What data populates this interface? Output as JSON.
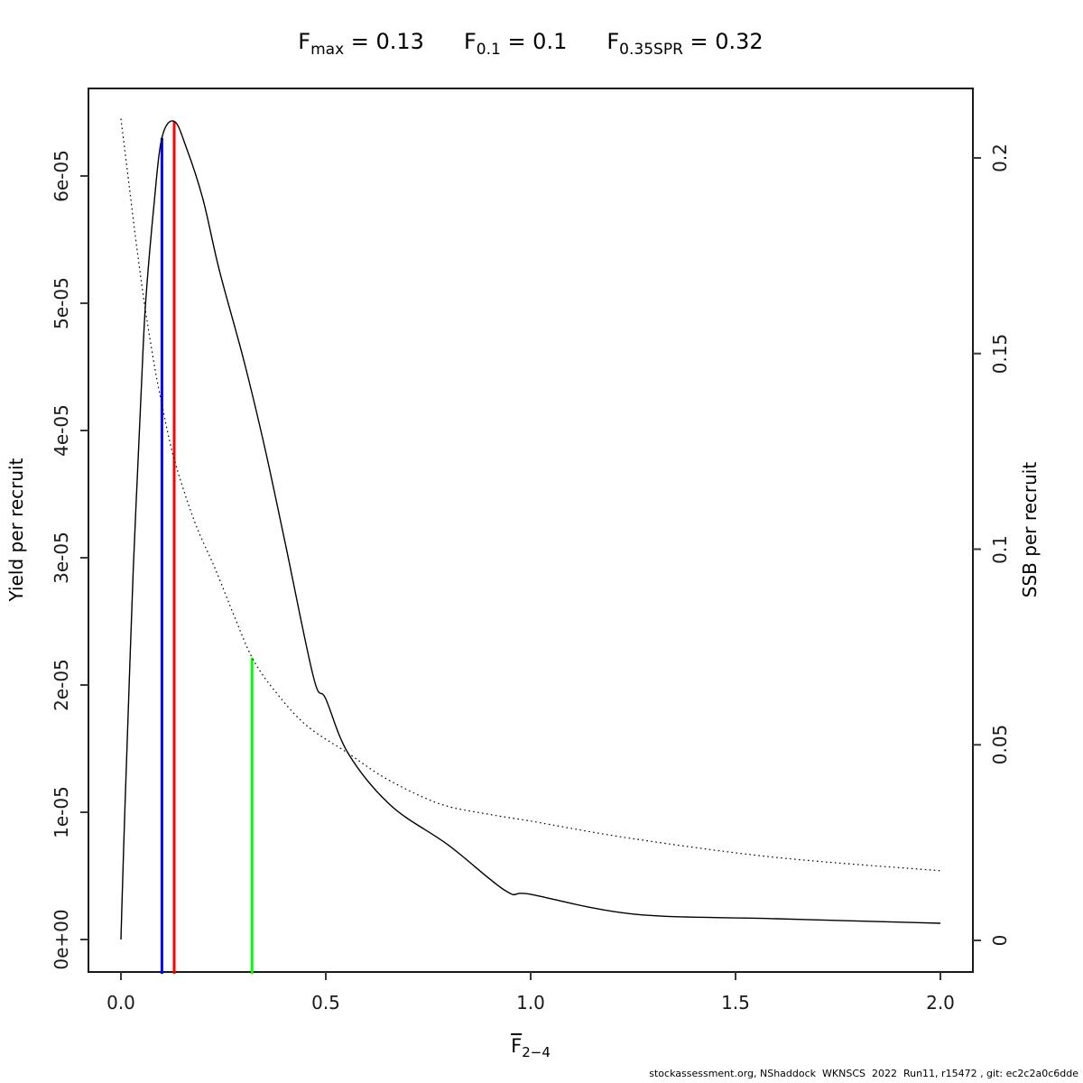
{
  "chart_data": {
    "type": "line",
    "title_parts": [
      {
        "base": "F",
        "sub": "max",
        "eq": " = 0.13"
      },
      {
        "base": "F",
        "sub": "0.1",
        "eq": " = 0.1"
      },
      {
        "base": "F",
        "sub": "0.35SPR",
        "eq": " = 0.32"
      }
    ],
    "x_axis": {
      "label_base": "F",
      "label_overbar": true,
      "label_sub": "2−4",
      "range": [
        0,
        2
      ],
      "ticks": [
        {
          "v": 0.0,
          "label": "0.0"
        },
        {
          "v": 0.5,
          "label": "0.5"
        },
        {
          "v": 1.0,
          "label": "1.0"
        },
        {
          "v": 1.5,
          "label": "1.5"
        },
        {
          "v": 2.0,
          "label": "2.0"
        }
      ]
    },
    "y_left": {
      "label": "Yield per recruit",
      "range": [
        0,
        6.6e-05
      ],
      "ticks": [
        {
          "v": 0.0,
          "label": "0e+00"
        },
        {
          "v": 1e-05,
          "label": "1e-05"
        },
        {
          "v": 2e-05,
          "label": "2e-05"
        },
        {
          "v": 3e-05,
          "label": "3e-05"
        },
        {
          "v": 4e-05,
          "label": "4e-05"
        },
        {
          "v": 5e-05,
          "label": "5e-05"
        },
        {
          "v": 6e-05,
          "label": "6e-05"
        }
      ]
    },
    "y_right": {
      "label": "SSB per recruit",
      "range": [
        0,
        0.21
      ],
      "ticks": [
        {
          "v": 0.0,
          "label": "0"
        },
        {
          "v": 0.05,
          "label": "0.05"
        },
        {
          "v": 0.1,
          "label": "0.1"
        },
        {
          "v": 0.15,
          "label": "0.15"
        },
        {
          "v": 0.2,
          "label": "0.2"
        }
      ]
    },
    "grid": false,
    "legend": "none",
    "series": [
      {
        "name": "yield_per_recruit",
        "axis": "left",
        "style": "solid",
        "color": "#000000",
        "points": [
          [
            0,
            0
          ],
          [
            0.005,
            5.5e-06
          ],
          [
            0.01,
            1.05e-05
          ],
          [
            0.02,
            2e-05
          ],
          [
            0.03,
            2.9e-05
          ],
          [
            0.04,
            3.64e-05
          ],
          [
            0.05,
            4.35e-05
          ],
          [
            0.06,
            4.99e-05
          ],
          [
            0.08,
            5.75e-05
          ],
          [
            0.1,
            6.3e-05
          ],
          [
            0.13,
            6.43e-05
          ],
          [
            0.16,
            6.22e-05
          ],
          [
            0.2,
            5.82e-05
          ],
          [
            0.24,
            5.26e-05
          ],
          [
            0.3,
            4.55e-05
          ],
          [
            0.35,
            3.88e-05
          ],
          [
            0.4,
            3.13e-05
          ],
          [
            0.47,
            2.06e-05
          ],
          [
            0.5,
            1.89e-05
          ],
          [
            0.555,
            1.46e-05
          ],
          [
            0.66,
            1.05e-05
          ],
          [
            0.8,
            7.4e-06
          ],
          [
            0.94,
            3.8e-06
          ],
          [
            1.0,
            3.55e-06
          ],
          [
            1.25,
            2e-06
          ],
          [
            1.6,
            1.63e-06
          ],
          [
            2.0,
            1.28e-06
          ]
        ]
      },
      {
        "name": "ssb_per_recruit",
        "axis": "right",
        "style": "dotted",
        "color": "#000000",
        "points": [
          [
            0,
            0.21
          ],
          [
            0.02,
            0.193
          ],
          [
            0.04,
            0.176
          ],
          [
            0.06,
            0.161
          ],
          [
            0.08,
            0.148
          ],
          [
            0.1,
            0.137
          ],
          [
            0.13,
            0.123
          ],
          [
            0.18,
            0.107
          ],
          [
            0.23,
            0.095
          ],
          [
            0.28,
            0.082
          ],
          [
            0.32,
            0.0723
          ],
          [
            0.37,
            0.0645
          ],
          [
            0.45,
            0.0552
          ],
          [
            0.555,
            0.0478
          ],
          [
            0.65,
            0.0412
          ],
          [
            0.778,
            0.0349
          ],
          [
            0.9,
            0.0322
          ],
          [
            1.0,
            0.0305
          ],
          [
            1.25,
            0.026
          ],
          [
            1.6,
            0.0212
          ],
          [
            2.0,
            0.0178
          ]
        ]
      }
    ],
    "reference_lines": [
      {
        "name": "F0.1",
        "x": 0.1,
        "axis": "left",
        "top": 6.3e-05,
        "color": "#0000ff"
      },
      {
        "name": "Fmax",
        "x": 0.13,
        "axis": "left",
        "top": 6.43e-05,
        "color": "#ff0000"
      },
      {
        "name": "F0.35SPR",
        "x": 0.32,
        "axis": "right",
        "top": 0.0723,
        "color": "#00ff00"
      }
    ],
    "footer": "stockassessment.org, NShaddock  WKNSCS  2022  Run11, r15472 , git: ec2c2a0c6dde"
  }
}
